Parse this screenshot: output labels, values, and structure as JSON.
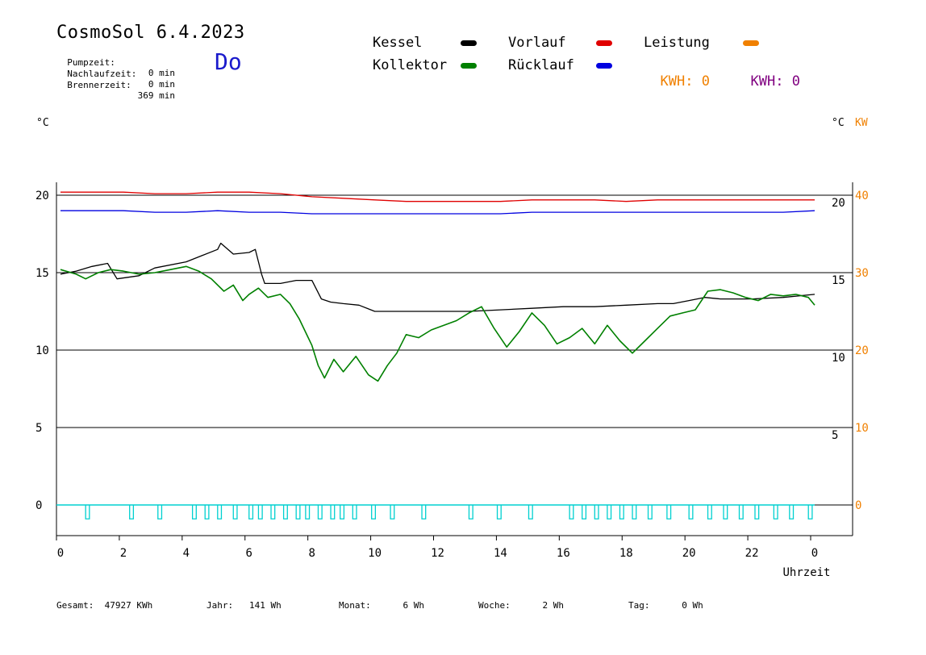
{
  "header": {
    "title": "CosmoSol 6.4.2023",
    "day": "Do",
    "stats": [
      {
        "label": "Pumpzeit:",
        "value": "0 min"
      },
      {
        "label": "Nachlaufzeit:",
        "value": "0 min"
      },
      {
        "label": "Brennerzeit:",
        "value": "369 min"
      }
    ]
  },
  "legend": {
    "items": [
      {
        "label": "Kessel",
        "color": "#000000"
      },
      {
        "label": "Vorlauf",
        "color": "#e00000"
      },
      {
        "label": "Leistung",
        "color": "#f08000"
      },
      {
        "label": "Kollektor",
        "color": "#008000"
      },
      {
        "label": "Rücklauf",
        "color": "#0000e0"
      }
    ],
    "kwh_orange": {
      "label": "KWH:",
      "value": "0",
      "color": "#f08000"
    },
    "kwh_purple": {
      "label": "KWH:",
      "value": "0",
      "color": "#800080"
    }
  },
  "units": {
    "left": "°C",
    "right": "°C",
    "right_power": "KW"
  },
  "footer": {
    "gesamt_label": "Gesamt:",
    "gesamt_value": "47927 KWh",
    "jahr_label": "Jahr:",
    "jahr_value": "141 Wh",
    "monat_label": "Monat:",
    "monat_value": "6 Wh",
    "woche_label": "Woche:",
    "woche_value": "2 Wh",
    "tag_label": "Tag:",
    "tag_value": "0 Wh"
  },
  "chart_data": {
    "type": "line",
    "xlabel": "Uhrzeit",
    "x_ticks": [
      "0",
      "2",
      "4",
      "6",
      "8",
      "10",
      "12",
      "14",
      "16",
      "18",
      "20",
      "22",
      "0"
    ],
    "xlim": [
      0,
      24
    ],
    "ylim": [
      -1.5,
      21
    ],
    "left_ticks": [
      "0",
      "5",
      "10",
      "15",
      "20"
    ],
    "right_ticks_temp": [
      "5",
      "10",
      "15",
      "20"
    ],
    "right_ticks_power": [
      "0",
      "10",
      "20",
      "30",
      "40"
    ],
    "grid_y": [
      5,
      10,
      15,
      20
    ],
    "series": [
      {
        "name": "Kessel",
        "color": "#000000",
        "x": [
          0,
          0.5,
          1,
          1.5,
          1.8,
          2.5,
          3,
          4,
          4.5,
          5,
          5.1,
          5.5,
          6,
          6.2,
          6.4,
          6.5,
          7,
          7.5,
          8,
          8.3,
          8.6,
          9,
          9.5,
          10,
          11,
          12,
          13,
          14,
          15,
          16,
          17,
          18,
          19,
          19.5,
          20,
          20.5,
          21,
          22,
          23,
          24
        ],
        "y": [
          14.9,
          15.1,
          15.4,
          15.6,
          14.6,
          14.8,
          15.3,
          15.7,
          16.1,
          16.5,
          16.9,
          16.2,
          16.3,
          16.5,
          14.9,
          14.3,
          14.3,
          14.5,
          14.5,
          13.3,
          13.1,
          13.0,
          12.9,
          12.5,
          12.5,
          12.5,
          12.5,
          12.6,
          12.7,
          12.8,
          12.8,
          12.9,
          13.0,
          13.0,
          13.2,
          13.4,
          13.3,
          13.3,
          13.4,
          13.6
        ]
      },
      {
        "name": "Kollektor",
        "color": "#008000",
        "x": [
          0,
          0.5,
          0.8,
          1.2,
          1.6,
          2,
          2.5,
          3,
          3.5,
          4,
          4.4,
          4.8,
          5.2,
          5.5,
          5.8,
          6,
          6.3,
          6.6,
          7,
          7.3,
          7.6,
          8,
          8.2,
          8.4,
          8.7,
          9,
          9.4,
          9.8,
          10.1,
          10.4,
          10.7,
          11,
          11.4,
          11.8,
          12.2,
          12.6,
          13,
          13.4,
          13.8,
          14.2,
          14.6,
          15,
          15.4,
          15.8,
          16.2,
          16.6,
          17,
          17.4,
          17.8,
          18.2,
          18.6,
          19,
          19.4,
          19.8,
          20.2,
          20.6,
          21,
          21.4,
          21.8,
          22.2,
          22.6,
          23,
          23.4,
          23.8,
          24
        ],
        "y": [
          15.2,
          14.9,
          14.6,
          15.0,
          15.2,
          15.1,
          14.9,
          15.0,
          15.2,
          15.4,
          15.1,
          14.6,
          13.8,
          14.2,
          13.2,
          13.6,
          14.0,
          13.4,
          13.6,
          13.0,
          12.0,
          10.3,
          9.0,
          8.2,
          9.4,
          8.6,
          9.6,
          8.4,
          8.0,
          9.0,
          9.8,
          11.0,
          10.8,
          11.3,
          11.6,
          11.9,
          12.4,
          12.8,
          11.4,
          10.2,
          11.2,
          12.4,
          11.6,
          10.4,
          10.8,
          11.4,
          10.4,
          11.6,
          10.6,
          9.8,
          10.6,
          11.4,
          12.2,
          12.4,
          12.6,
          13.8,
          13.9,
          13.7,
          13.4,
          13.2,
          13.6,
          13.5,
          13.6,
          13.4,
          12.9
        ]
      },
      {
        "name": "Vorlauf",
        "color": "#e00000",
        "x": [
          0,
          1,
          2,
          3,
          4,
          5,
          6,
          7,
          8,
          9,
          10,
          11,
          12,
          13,
          14,
          15,
          16,
          17,
          18,
          19,
          20,
          21,
          22,
          23,
          24
        ],
        "y": [
          20.2,
          20.2,
          20.2,
          20.1,
          20.1,
          20.2,
          20.2,
          20.1,
          19.9,
          19.8,
          19.7,
          19.6,
          19.6,
          19.6,
          19.6,
          19.7,
          19.7,
          19.7,
          19.6,
          19.7,
          19.7,
          19.7,
          19.7,
          19.7,
          19.7
        ]
      },
      {
        "name": "Rücklauf",
        "color": "#0000e0",
        "x": [
          0,
          1,
          2,
          3,
          4,
          5,
          6,
          7,
          8,
          9,
          10,
          11,
          12,
          13,
          14,
          15,
          16,
          17,
          18,
          19,
          20,
          21,
          22,
          23,
          24
        ],
        "y": [
          19.0,
          19.0,
          19.0,
          18.9,
          18.9,
          19.0,
          18.9,
          18.9,
          18.8,
          18.8,
          18.8,
          18.8,
          18.8,
          18.8,
          18.8,
          18.9,
          18.9,
          18.9,
          18.9,
          18.9,
          18.9,
          18.9,
          18.9,
          18.9,
          19.0
        ]
      },
      {
        "name": "Pumpe",
        "color": "#00d0d0",
        "baseline": 0,
        "pulse_low": -0.9,
        "pulses": [
          0.8,
          2.2,
          3.1,
          4.2,
          4.6,
          5.0,
          5.5,
          6.0,
          6.3,
          6.7,
          7.1,
          7.5,
          7.8,
          8.2,
          8.6,
          8.9,
          9.3,
          9.9,
          10.5,
          11.5,
          13.0,
          13.9,
          14.9,
          16.2,
          16.6,
          17.0,
          17.4,
          17.8,
          18.2,
          18.7,
          19.3,
          20.0,
          20.6,
          21.1,
          21.6,
          22.1,
          22.7,
          23.2,
          23.8
        ],
        "pulse_width": 0.12
      }
    ]
  }
}
